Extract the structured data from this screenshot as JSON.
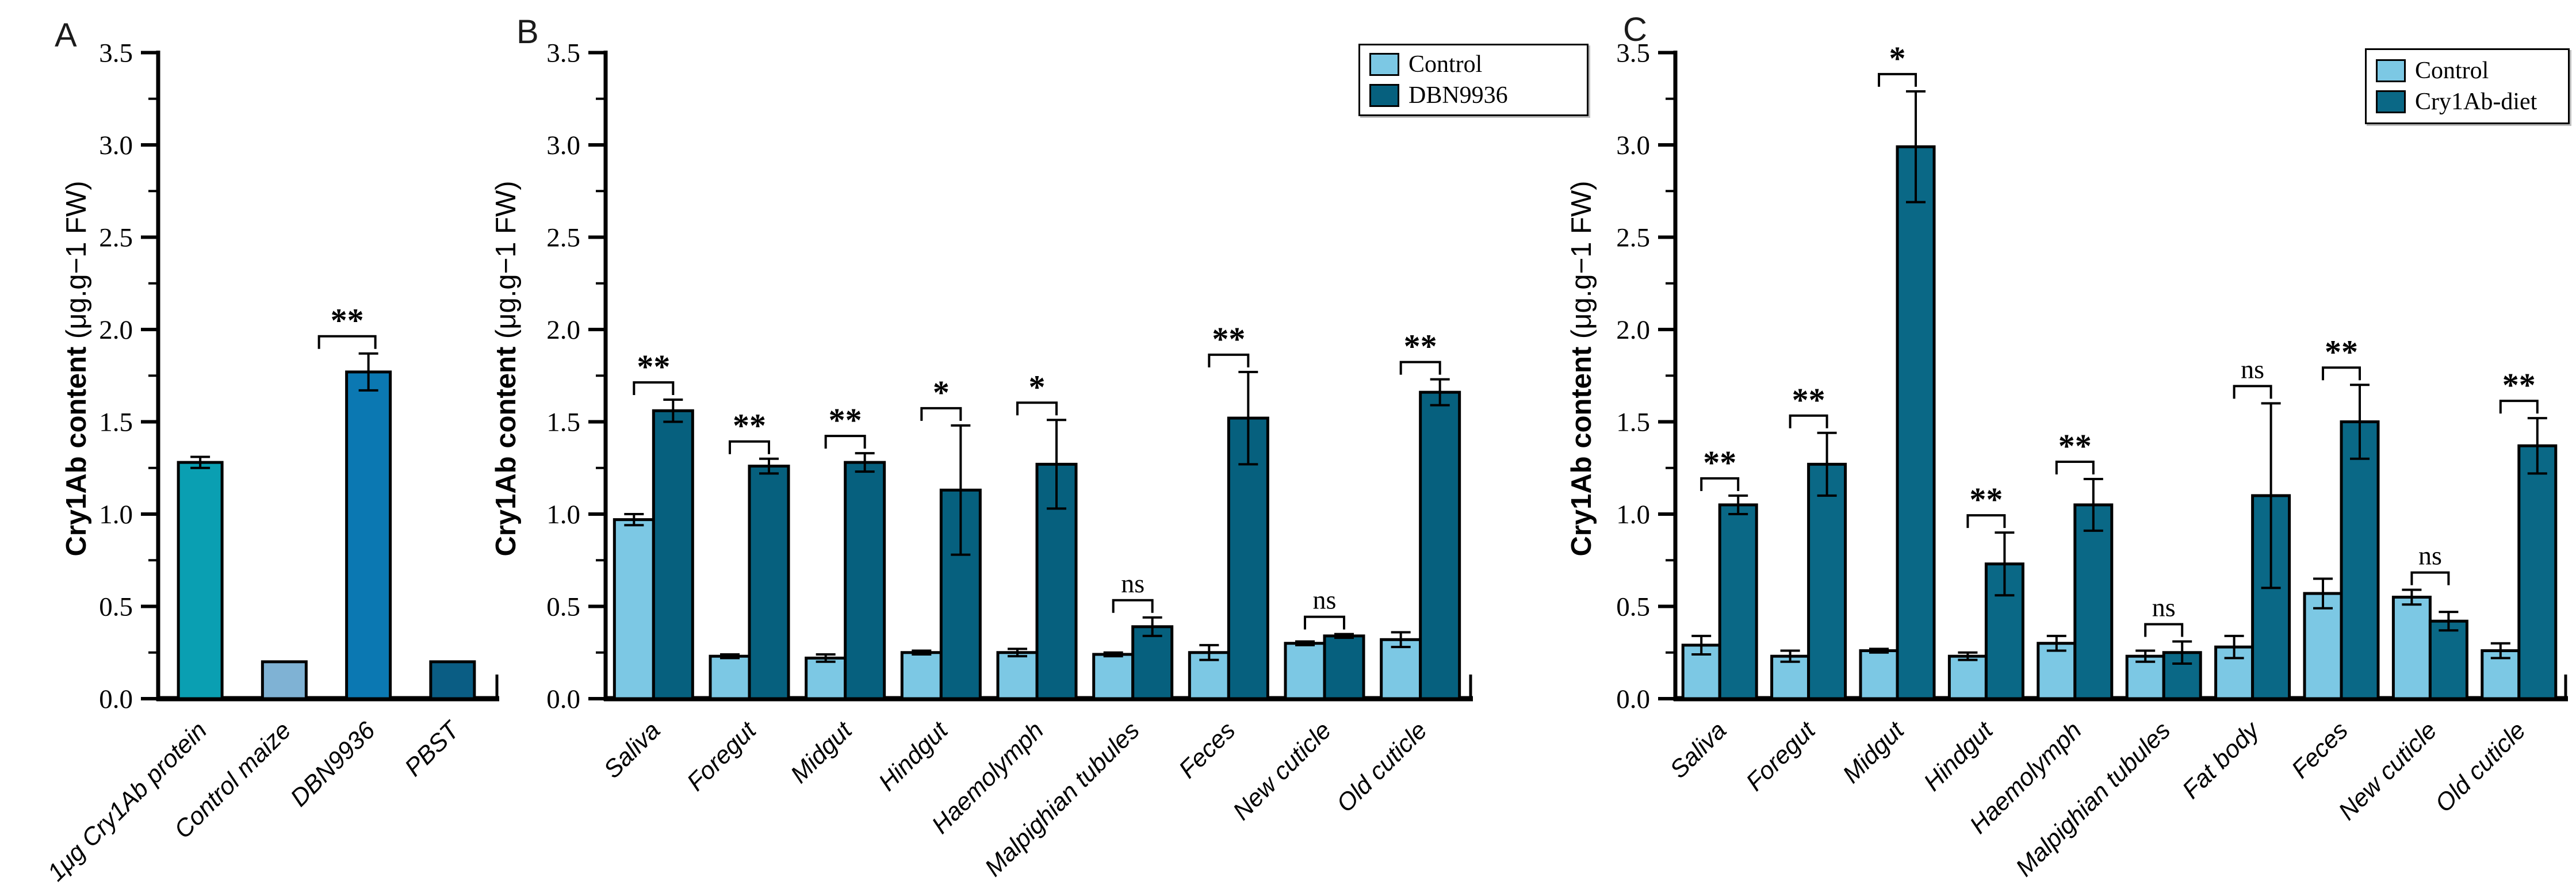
{
  "figure": {
    "background": "#ffffff",
    "axis_color": "#000000"
  },
  "chart_data": [
    {
      "type": "bar",
      "panel": "A",
      "title": "",
      "ylabel_name": "Cry1Ab content",
      "ylabel_units": " (μg.g−1 FW)",
      "ylim": [
        0,
        3.5
      ],
      "ytick_step": 0.5,
      "yminor_step": 0.25,
      "grid": false,
      "categories": [
        "1μg Cry1Ab protein",
        "Control maize",
        "DBN9936",
        "PBST"
      ],
      "values": [
        1.28,
        0.2,
        1.77,
        0.2
      ],
      "errors": [
        0.03,
        0,
        0.1,
        0
      ],
      "bar_colors": [
        "#0a9fb2",
        "#7fb2d4",
        "#0b78b2",
        "#0a5d84"
      ],
      "significance": [
        {
          "label": "**",
          "bar_index": 2
        }
      ]
    },
    {
      "type": "grouped-bar",
      "panel": "B",
      "title": "",
      "ylabel_name": "Cry1Ab content",
      "ylabel_units": " (μg.g−1 FW)",
      "ylim": [
        0,
        3.5
      ],
      "ytick_step": 0.5,
      "yminor_step": 0.25,
      "grid": false,
      "legend_position": "top-right",
      "categories": [
        "Saliva",
        "Foregut",
        "Midgut",
        "Hindgut",
        "Haemolymph",
        "Malpighian tubules",
        "Feces",
        "New cuticle",
        "Old cuticle"
      ],
      "series": [
        {
          "name": "Control",
          "color": "#7cc8e4",
          "values": [
            0.97,
            0.23,
            0.22,
            0.25,
            0.25,
            0.24,
            0.25,
            0.3,
            0.32
          ],
          "errors": [
            0.03,
            0.01,
            0.02,
            0.01,
            0.02,
            0.01,
            0.04,
            0.01,
            0.04
          ]
        },
        {
          "name": "DBN9936",
          "color": "#06607e",
          "values": [
            1.56,
            1.26,
            1.28,
            1.13,
            1.27,
            0.39,
            1.52,
            0.34,
            1.66
          ],
          "errors": [
            0.06,
            0.04,
            0.05,
            0.35,
            0.24,
            0.05,
            0.25,
            0.01,
            0.07
          ]
        }
      ],
      "significance": [
        "**",
        "**",
        "**",
        "*",
        "*",
        "ns",
        "**",
        "ns",
        "**"
      ]
    },
    {
      "type": "grouped-bar",
      "panel": "C",
      "title": "",
      "ylabel_name": "Cry1Ab content",
      "ylabel_units": " (μg.g−1 FW)",
      "ylim": [
        0,
        3.5
      ],
      "ytick_step": 0.5,
      "yminor_step": 0.25,
      "grid": false,
      "legend_position": "top-right",
      "categories": [
        "Saliva",
        "Foregut",
        "Midgut",
        "Hindgut",
        "Haemolymph",
        "Malpighian tubules",
        "Fat body",
        "Feces",
        "New cuticle",
        "Old cuticle"
      ],
      "series": [
        {
          "name": "Control",
          "color": "#7cc8e4",
          "values": [
            0.29,
            0.23,
            0.26,
            0.23,
            0.3,
            0.23,
            0.28,
            0.57,
            0.55,
            0.26
          ],
          "errors": [
            0.05,
            0.03,
            0.01,
            0.02,
            0.04,
            0.03,
            0.06,
            0.08,
            0.04,
            0.04
          ]
        },
        {
          "name": "Cry1Ab-diet",
          "color": "#0a6886",
          "values": [
            1.05,
            1.27,
            2.99,
            0.73,
            1.05,
            0.25,
            1.1,
            1.5,
            0.42,
            1.37
          ],
          "errors": [
            0.05,
            0.17,
            0.3,
            0.17,
            0.14,
            0.06,
            0.5,
            0.2,
            0.05,
            0.15
          ]
        }
      ],
      "significance": [
        "**",
        "**",
        "*",
        "**",
        "**",
        "ns",
        "ns",
        "**",
        "ns",
        "**"
      ]
    }
  ]
}
